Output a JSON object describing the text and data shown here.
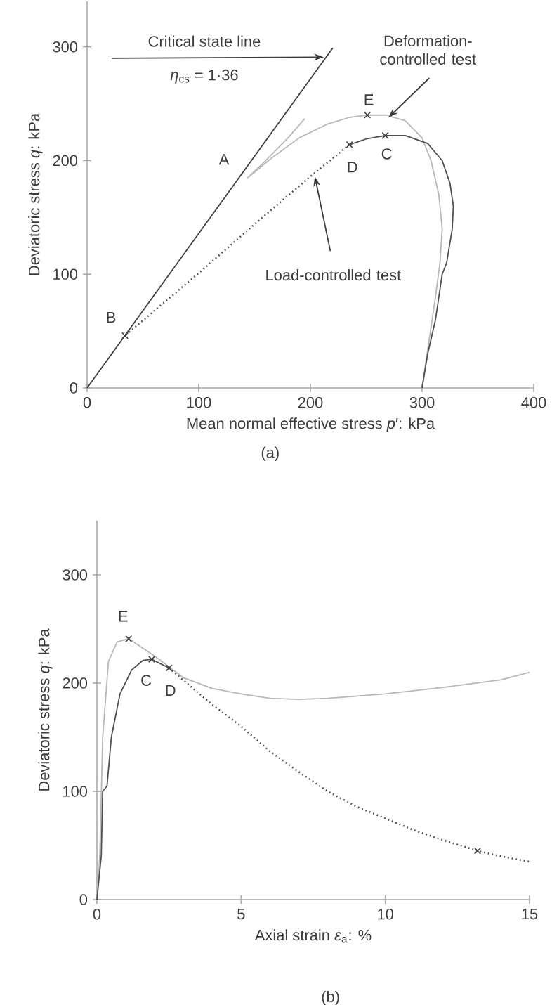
{
  "chart_data": [
    {
      "type": "line",
      "xlabel": "Mean  normal effective stress *p*′: kPa",
      "ylabel": "Deviatoric stress *q*: kPa",
      "xlim": [
        0,
        400
      ],
      "ylim": [
        0,
        340
      ],
      "xticks": [
        0,
        100,
        200,
        300,
        400
      ],
      "yticks": [
        0,
        100,
        200,
        300
      ],
      "series": [
        {
          "type": "line",
          "color": "#404040",
          "line_style": "solid",
          "x": [
            0,
            220
          ],
          "values": [
            0,
            299
          ]
        },
        {
          "type": "line",
          "color": "#b8b8b8",
          "line_style": "solid",
          "x": [
            300,
            306,
            312,
            316,
            318,
            315,
            308,
            300,
            285,
            268,
            251,
            235,
            215,
            190,
            165,
            144,
            160,
            180,
            195
          ],
          "values": [
            0,
            40,
            80,
            110,
            140,
            170,
            200,
            220,
            235,
            240,
            240,
            238,
            232,
            220,
            202,
            185,
            200,
            220,
            237
          ]
        },
        {
          "type": "line",
          "color": "#505050",
          "line_style": "solid",
          "x": [
            300,
            305,
            312,
            318,
            322,
            327,
            328,
            325,
            318,
            305,
            285,
            267,
            250,
            235
          ],
          "values": [
            0,
            30,
            60,
            100,
            110,
            140,
            160,
            180,
            200,
            215,
            222,
            222,
            219,
            214
          ]
        },
        {
          "type": "line",
          "color": "#505050",
          "line_style": "dotted",
          "x": [
            235,
            200,
            150,
            100,
            34
          ],
          "values": [
            214,
            186,
            144,
            101,
            46
          ]
        },
        {
          "type": "scatter",
          "color": "#404040",
          "marker": "cross",
          "x": [
            34,
            235,
            267,
            251
          ],
          "values": [
            46,
            214,
            222,
            240
          ]
        }
      ],
      "annotations": [
        "Critical state line",
        "*η*$_{cs}$ = 1·36",
        {
          "text": "Deformation-controlled test",
          "x": 270,
          "y": 238
        },
        {
          "text": "Load-controlled test",
          "x": 204,
          "y": 186
        },
        {
          "text": "A",
          "x": 144,
          "y": 185
        },
        {
          "text": "B",
          "x": 34,
          "y": 46
        },
        {
          "text": "C",
          "x": 267,
          "y": 222
        },
        {
          "text": "D",
          "x": 235,
          "y": 214
        },
        {
          "text": "E",
          "x": 251,
          "y": 240
        },
        "(a)"
      ]
    },
    {
      "type": "line",
      "xlabel": "Axial strain *ε*$_{a}$: %",
      "ylabel": "Deviatoric stress *q*: kPa",
      "xlim": [
        0,
        15
      ],
      "ylim": [
        0,
        350
      ],
      "xticks": [
        0,
        5,
        10,
        15
      ],
      "yticks": [
        0,
        100,
        200,
        300
      ],
      "series": [
        {
          "type": "line",
          "color": "#b8b8b8",
          "line_style": "solid",
          "x": [
            0,
            0.1,
            0.2,
            0.4,
            0.7,
            1.1,
            2,
            3,
            4,
            5,
            6,
            7,
            8,
            10,
            12,
            14,
            15
          ],
          "values": [
            0,
            40,
            150,
            220,
            238,
            241,
            225,
            205,
            195,
            190,
            186,
            185,
            186,
            190,
            196,
            203,
            210
          ]
        },
        {
          "type": "line",
          "color": "#505050",
          "line_style": "solid",
          "x": [
            0,
            0.15,
            0.2,
            0.35,
            0.5,
            0.8,
            1.2,
            1.6,
            1.9,
            2.5
          ],
          "values": [
            0,
            40,
            100,
            105,
            150,
            190,
            212,
            221,
            222,
            214
          ]
        },
        {
          "type": "line",
          "color": "#505050",
          "line_style": "dotted",
          "x": [
            2.5,
            4,
            5,
            6,
            7,
            8,
            9,
            10,
            11,
            12,
            13.2,
            14,
            15
          ],
          "values": [
            214,
            180,
            160,
            137,
            118,
            100,
            86,
            75,
            64,
            55,
            45,
            40,
            35
          ]
        },
        {
          "type": "scatter",
          "color": "#404040",
          "marker": "cross",
          "x": [
            1.1,
            1.9,
            2.5,
            13.2
          ],
          "values": [
            241,
            222,
            214,
            45
          ]
        }
      ],
      "annotations": [
        {
          "text": "E",
          "x": 1.1,
          "y": 241
        },
        {
          "text": "C",
          "x": 1.9,
          "y": 222
        },
        {
          "text": "D",
          "x": 2.5,
          "y": 214
        },
        "(b)"
      ]
    }
  ]
}
